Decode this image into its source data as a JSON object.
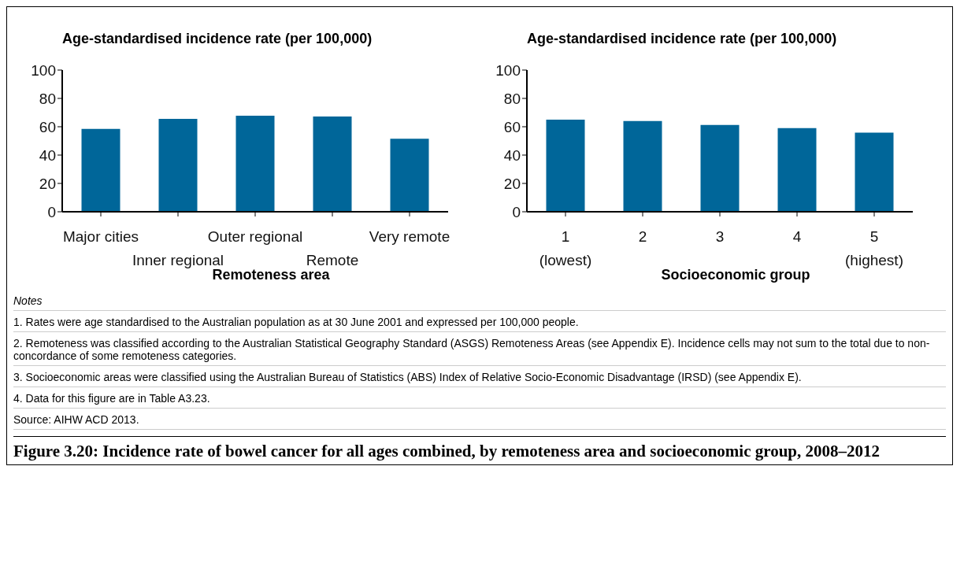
{
  "chart_data": [
    {
      "type": "bar",
      "title": "Age-standardised incidence rate (per 100,000)",
      "xlabel": "Remoteness area",
      "categories": [
        "Major cities",
        "Inner regional",
        "Outer regional",
        "Remote",
        "Very remote"
      ],
      "values": [
        58.5,
        65.5,
        67.8,
        67.2,
        51.5
      ],
      "color": "#006699",
      "ylim": [
        0,
        100
      ],
      "yticks": [
        0,
        20,
        40,
        60,
        80,
        100
      ]
    },
    {
      "type": "bar",
      "title": "Age-standardised incidence rate (per 100,000)",
      "xlabel": "Socioeconomic group",
      "categories": [
        "1\n(lowest)",
        "2",
        "3",
        "4",
        "5\n(highest)"
      ],
      "values": [
        65,
        64,
        61.2,
        59,
        55.8
      ],
      "color": "#006699",
      "ylim": [
        0,
        100
      ],
      "yticks": [
        0,
        20,
        40,
        60,
        80,
        100
      ],
      "annotations": [
        "Notes",
        "1. Rates were age standardised to the Australian population as at 30 June 2001 and expressed per 100,000 people.",
        "2. Remoteness was classified according to the Australian Statistical Geography Standard (ASGS) Remoteness Areas (see Appendix E). Incidence cells may not sum to the total due to non-concordance of some remoteness categories.",
        "3. Socioeconomic areas were classified using the Australian Bureau of Statistics (ABS) Index of Relative Socio-Economic Disadvantage (IRSD) (see Appendix E).",
        "4. Data for this figure are in Table A3.23.",
        "Source: AIHW ACD 2013.",
        "Figure 3.20: Incidence rate of bowel cancer for all ages combined, by remoteness area and socioeconomic group, 2008–2012"
      ]
    }
  ]
}
